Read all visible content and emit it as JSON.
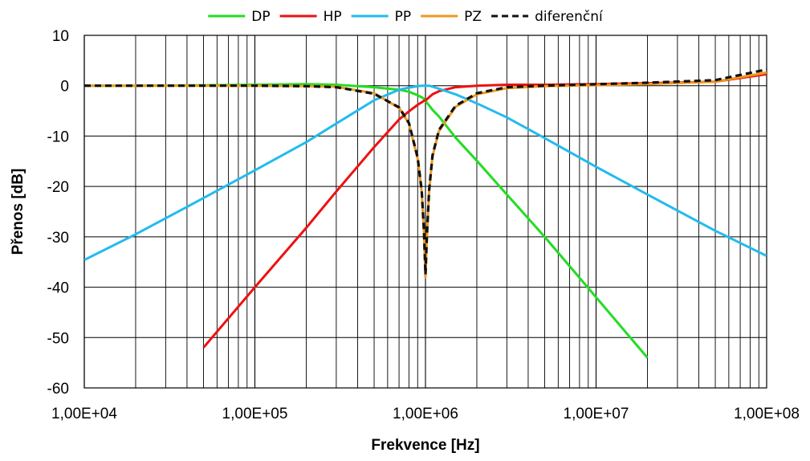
{
  "chart_data": {
    "type": "line",
    "title": "",
    "xlabel": "Frekvence  [Hz]",
    "ylabel": "Přenos [dB]",
    "x_scale": "log",
    "xlim": [
      10000,
      100000000
    ],
    "ylim": [
      -60,
      10
    ],
    "grid": true,
    "legend_position": "top",
    "x_ticks": [
      10000,
      100000,
      1000000,
      10000000,
      100000000
    ],
    "x_tick_labels": [
      "1,00E+04",
      "1,00E+05",
      "1,00E+06",
      "1,00E+07",
      "1,00E+08"
    ],
    "y_ticks": [
      10,
      0,
      -10,
      -20,
      -30,
      -40,
      -50,
      -60
    ],
    "y_tick_labels": [
      "10",
      "0",
      "-10",
      "-20",
      "-30",
      "-40",
      "-50",
      "-60"
    ],
    "x": [
      10000,
      20000,
      50000,
      100000,
      200000,
      300000,
      500000,
      700000,
      800000,
      900000,
      950000,
      980000,
      1000000,
      1020000,
      1050000,
      1100000,
      1200000,
      1500000,
      2000000,
      3000000,
      5000000,
      10000000,
      20000000,
      50000000,
      100000000
    ],
    "series": [
      {
        "name": "DP",
        "color": "#22dd22",
        "values": [
          0,
          0,
          0.1,
          0.2,
          0.3,
          0.2,
          -0.3,
          -0.8,
          -1.2,
          -1.9,
          -2.3,
          -2.6,
          -3,
          -3.4,
          -3.9,
          -4.8,
          -6.1,
          -10.3,
          -14.9,
          -21.6,
          -30,
          -42,
          -54,
          null,
          null
        ]
      },
      {
        "name": "HP",
        "color": "#ee1111",
        "values": [
          null,
          null,
          -52,
          -40,
          -28.2,
          -21,
          -12.2,
          -6.7,
          -5.1,
          -3.8,
          -3.3,
          -3,
          -2.9,
          -2.7,
          -2.3,
          -1.7,
          -1.1,
          -0.3,
          0,
          0.2,
          0.2,
          0.3,
          0.5,
          0.8,
          2.3
        ]
      },
      {
        "name": "PP",
        "color": "#22bbee",
        "values": [
          -34.6,
          -29.5,
          -22.3,
          -16.8,
          -11.2,
          -7.5,
          -2.9,
          -0.8,
          -0.4,
          -0.1,
          0,
          0,
          0,
          0,
          0,
          -0.2,
          -0.6,
          -1.7,
          -3.5,
          -6.3,
          -10.4,
          -16.1,
          -21.6,
          -28.8,
          -33.8
        ]
      },
      {
        "name": "PZ",
        "color": "#f0981e",
        "values": [
          0,
          0,
          0,
          0,
          -0.1,
          -0.2,
          -1.5,
          -4.4,
          -7.5,
          -14.5,
          -21,
          -29,
          -38,
          -30,
          -21,
          -14,
          -9,
          -4.2,
          -1.7,
          -0.5,
          -0.1,
          0.1,
          0.3,
          0.8,
          2.6
        ]
      },
      {
        "name": "diferenční",
        "color": "#111111",
        "dashed": true,
        "values": [
          0,
          0,
          0,
          0,
          -0.1,
          -0.3,
          -1.6,
          -4.3,
          -7.4,
          -14.3,
          -20.8,
          -28.8,
          -37.5,
          -29.8,
          -20.8,
          -13.8,
          -8.8,
          -4,
          -1.5,
          -0.3,
          0,
          0.3,
          0.6,
          1.1,
          3.2
        ]
      }
    ]
  }
}
